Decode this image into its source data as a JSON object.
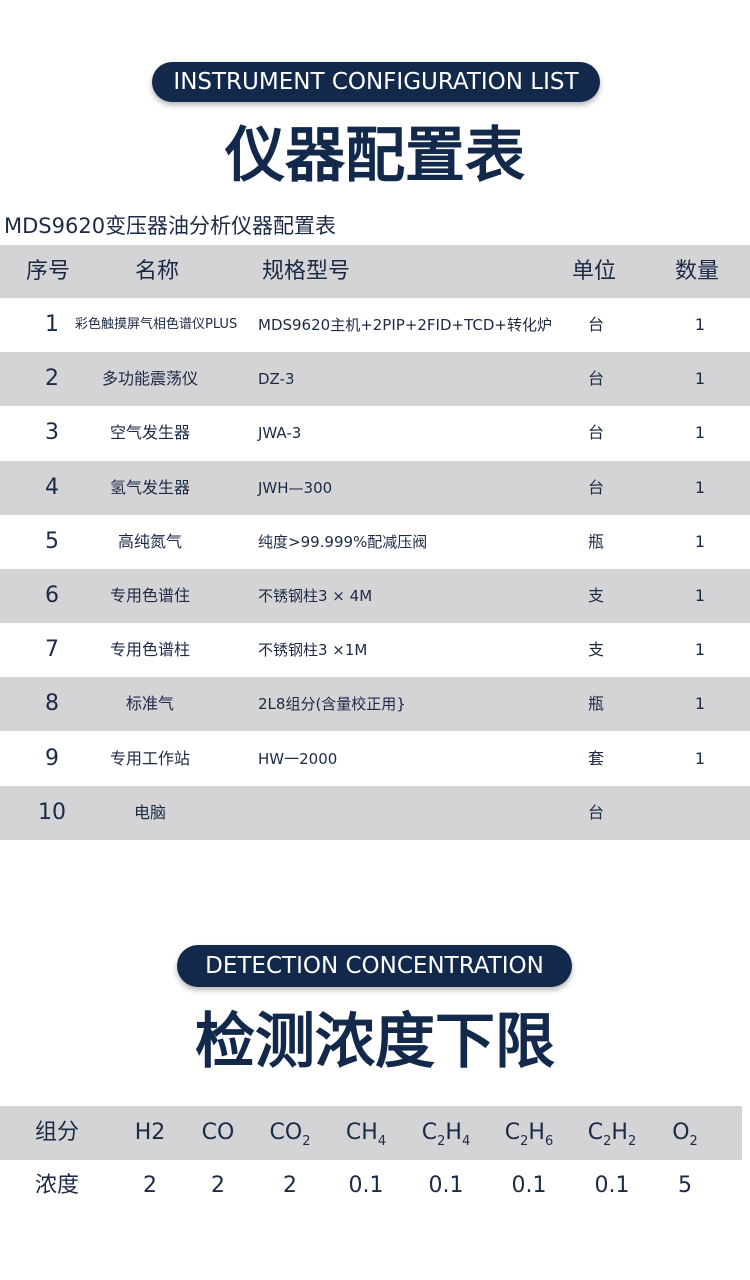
{
  "section1": {
    "badge": "INSTRUMENT CONFIGURATION LIST",
    "title": "仪器配置表",
    "table_title": "MDS9620变压器油分析仪器配置表",
    "table": {
      "headers": [
        "序号",
        "名称",
        "规格型号",
        "单位",
        "数量"
      ],
      "rows": [
        {
          "no": 1,
          "name": "彩色触摸屏气相色谱仪PLUS",
          "spec": "MDS9620主机+2PIP+2FID+TCD+转化炉",
          "unit": "台",
          "qty": 1
        },
        {
          "no": 2,
          "name": "多功能震荡仪",
          "spec": "DZ-3",
          "unit": "台",
          "qty": 1
        },
        {
          "no": 3,
          "name": "空气发生器",
          "spec": "JWA-3",
          "unit": "台",
          "qty": 1
        },
        {
          "no": 4,
          "name": "氢气发生器",
          "spec": "JWH—300",
          "unit": "台",
          "qty": 1
        },
        {
          "no": 5,
          "name": "高纯氮气",
          "spec": "纯度>99.999%配减压阀",
          "unit": "瓶",
          "qty": 1
        },
        {
          "no": 6,
          "name": "专用色谱住",
          "spec": "不锈钢柱3 × 4M",
          "unit": "支",
          "qty": 1
        },
        {
          "no": 7,
          "name": "专用色谱柱",
          "spec": "不锈钢柱3 ×1M",
          "unit": "支",
          "qty": 1
        },
        {
          "no": 8,
          "name": "标准气",
          "spec": "2L8组分(含量校正用}",
          "unit": "瓶",
          "qty": 1
        },
        {
          "no": 9,
          "name": "专用工作站",
          "spec": "HW一2000",
          "unit": "套",
          "qty": 1
        },
        {
          "no": 10,
          "name": "电脑",
          "unit": "台"
        }
      ]
    }
  },
  "section2": {
    "badge": "DETECTION CONCENTRATION",
    "title": "检测浓度下限",
    "table": {
      "header_label": "组分",
      "components": [
        [
          "H2"
        ],
        [
          "CO"
        ],
        [
          "CO",
          "2"
        ],
        [
          "CH",
          "4"
        ],
        [
          "C",
          "2",
          "H",
          "4"
        ],
        [
          "C",
          "2",
          "H",
          "6"
        ],
        [
          "C",
          "2",
          "H",
          "2"
        ],
        [
          "O",
          "2"
        ]
      ],
      "row_label": "浓度",
      "values": [
        2,
        2,
        2,
        0.1,
        0.1,
        0.1,
        0.1,
        5
      ]
    }
  }
}
